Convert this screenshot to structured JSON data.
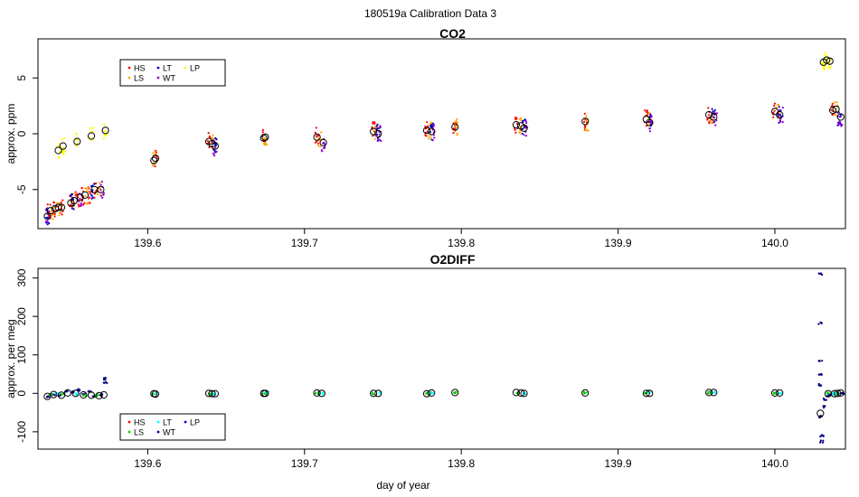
{
  "page": {
    "title": "180519a   Calibration Data 3",
    "xlabel": "day of year"
  },
  "chart_data": [
    {
      "type": "scatter",
      "title": "CO2",
      "xlabel": "",
      "ylabel": "approx. ppm",
      "xlim": [
        139.53,
        140.045
      ],
      "ylim": [
        -8.5,
        8.5
      ],
      "x_ticks": [
        139.6,
        139.7,
        139.8,
        139.9,
        140.0
      ],
      "x_tick_labels": [
        "139.6",
        "139.7",
        "139.8",
        "139.9",
        "140.0"
      ],
      "y_ticks": [
        -5,
        0,
        5
      ],
      "y_tick_labels": [
        "-5",
        "0",
        "5"
      ],
      "grid": false,
      "legend": {
        "placement": "top-left",
        "entries": [
          {
            "label": "HS",
            "color": "#ff0000"
          },
          {
            "label": "LT",
            "color": "#0000cd"
          },
          {
            "label": "LP",
            "color": "#ffff00"
          },
          {
            "label": "LS",
            "color": "#ffa500"
          },
          {
            "label": "WT",
            "color": "#9400d3"
          }
        ]
      },
      "series": [
        {
          "name": "HS",
          "color": "#ff0000",
          "points": [
            [
              139.537,
              -7.0
            ],
            [
              139.541,
              -6.7
            ],
            [
              139.545,
              -6.6
            ],
            [
              139.551,
              -6.2
            ],
            [
              139.555,
              -5.9
            ],
            [
              139.559,
              -5.6
            ],
            [
              139.563,
              -5.5
            ],
            [
              139.567,
              -5.0
            ],
            [
              139.605,
              -2.2
            ],
            [
              139.639,
              -0.6
            ],
            [
              139.674,
              -0.4
            ],
            [
              139.708,
              -0.2
            ],
            [
              139.744,
              0.3
            ],
            [
              139.778,
              0.4
            ],
            [
              139.796,
              0.7
            ],
            [
              139.835,
              0.8
            ],
            [
              139.879,
              1.1
            ],
            [
              139.918,
              1.4
            ],
            [
              139.958,
              1.7
            ],
            [
              140.0,
              2.1
            ],
            [
              140.037,
              2.2
            ]
          ]
        },
        {
          "name": "LS",
          "color": "#ffa500",
          "points": [
            [
              139.539,
              -6.9
            ],
            [
              139.543,
              -6.6
            ],
            [
              139.553,
              -6.0
            ],
            [
              139.561,
              -5.6
            ],
            [
              139.569,
              -5.1
            ],
            [
              139.604,
              -2.3
            ],
            [
              139.641,
              -0.8
            ],
            [
              139.675,
              -0.3
            ],
            [
              139.71,
              -0.5
            ],
            [
              139.746,
              0.2
            ],
            [
              139.78,
              0.3
            ],
            [
              139.797,
              0.6
            ],
            [
              139.838,
              0.7
            ],
            [
              139.88,
              1.0
            ],
            [
              139.92,
              1.2
            ],
            [
              139.96,
              1.6
            ],
            [
              140.002,
              2.0
            ],
            [
              140.039,
              2.1
            ]
          ]
        },
        {
          "name": "LT",
          "color": "#0000cd",
          "points": [
            [
              139.536,
              -7.5
            ],
            [
              139.552,
              -6.1
            ],
            [
              139.565,
              -5.2
            ],
            [
              139.643,
              -1.0
            ],
            [
              139.747,
              0.1
            ],
            [
              139.781,
              0.2
            ],
            [
              139.84,
              0.5
            ],
            [
              139.92,
              1.0
            ],
            [
              139.961,
              1.5
            ],
            [
              140.003,
              1.7
            ],
            [
              140.041,
              1.5
            ]
          ]
        },
        {
          "name": "WT",
          "color": "#9400d3",
          "points": [
            [
              139.536,
              -7.4
            ],
            [
              139.557,
              -5.8
            ],
            [
              139.571,
              -5.0
            ],
            [
              139.643,
              -1.2
            ],
            [
              139.712,
              -0.8
            ],
            [
              139.748,
              0.0
            ],
            [
              139.782,
              0.1
            ],
            [
              139.841,
              0.4
            ],
            [
              139.921,
              0.9
            ],
            [
              139.962,
              1.4
            ],
            [
              140.004,
              1.6
            ],
            [
              140.042,
              1.4
            ]
          ]
        },
        {
          "name": "LP",
          "color": "#ffff00",
          "points": [
            [
              139.543,
              -1.5
            ],
            [
              139.546,
              -1.1
            ],
            [
              139.555,
              -0.7
            ],
            [
              139.564,
              -0.2
            ],
            [
              139.573,
              0.3
            ],
            [
              140.031,
              6.4
            ],
            [
              140.033,
              6.6
            ],
            [
              140.035,
              6.5
            ]
          ]
        }
      ],
      "means": [
        [
          139.536,
          -7.4
        ],
        [
          139.538,
          -6.9
        ],
        [
          139.541,
          -6.7
        ],
        [
          139.543,
          -6.6
        ],
        [
          139.545,
          -6.6
        ],
        [
          139.551,
          -6.2
        ],
        [
          139.553,
          -6.0
        ],
        [
          139.557,
          -5.7
        ],
        [
          139.56,
          -5.5
        ],
        [
          139.566,
          -5.0
        ],
        [
          139.57,
          -5.0
        ],
        [
          139.543,
          -1.5
        ],
        [
          139.546,
          -1.1
        ],
        [
          139.555,
          -0.7
        ],
        [
          139.564,
          -0.2
        ],
        [
          139.573,
          0.3
        ],
        [
          139.605,
          -2.2
        ],
        [
          139.604,
          -2.4
        ],
        [
          139.639,
          -0.7
        ],
        [
          139.641,
          -0.9
        ],
        [
          139.643,
          -1.1
        ],
        [
          139.674,
          -0.4
        ],
        [
          139.675,
          -0.3
        ],
        [
          139.708,
          -0.3
        ],
        [
          139.712,
          -0.8
        ],
        [
          139.744,
          0.2
        ],
        [
          139.747,
          0.0
        ],
        [
          139.778,
          0.3
        ],
        [
          139.781,
          0.2
        ],
        [
          139.796,
          0.6
        ],
        [
          139.835,
          0.8
        ],
        [
          139.838,
          0.7
        ],
        [
          139.84,
          0.5
        ],
        [
          139.879,
          1.1
        ],
        [
          139.918,
          1.3
        ],
        [
          139.92,
          1.0
        ],
        [
          139.958,
          1.7
        ],
        [
          139.961,
          1.5
        ],
        [
          140.0,
          2.0
        ],
        [
          140.003,
          1.7
        ],
        [
          140.031,
          6.4
        ],
        [
          140.033,
          6.6
        ],
        [
          140.035,
          6.5
        ],
        [
          140.037,
          2.1
        ],
        [
          140.039,
          2.2
        ],
        [
          140.042,
          1.5
        ]
      ]
    },
    {
      "type": "scatter",
      "title": "O2DIFF",
      "xlabel": "day of year",
      "ylabel": "approx. per meg",
      "xlim": [
        139.53,
        140.045
      ],
      "ylim": [
        -145,
        325
      ],
      "x_ticks": [
        139.6,
        139.7,
        139.8,
        139.9,
        140.0
      ],
      "x_tick_labels": [
        "139.6",
        "139.7",
        "139.8",
        "139.9",
        "140.0"
      ],
      "y_ticks": [
        -100,
        0,
        100,
        200,
        300
      ],
      "y_tick_labels": [
        "-100",
        "0",
        "100",
        "200",
        "300"
      ],
      "grid": false,
      "legend": {
        "placement": "bottom-left",
        "entries": [
          {
            "label": "HS",
            "color": "#ff0000"
          },
          {
            "label": "LT",
            "color": "#00ffff"
          },
          {
            "label": "LP",
            "color": "#0000cd"
          },
          {
            "label": "LS",
            "color": "#00cd00"
          },
          {
            "label": "WT",
            "color": "#000080"
          }
        ]
      },
      "series": [
        {
          "name": "WT",
          "color": "#000080",
          "points": [
            [
              139.536,
              -8
            ],
            [
              139.54,
              -2
            ],
            [
              139.544,
              -5
            ],
            [
              139.548,
              6
            ],
            [
              139.552,
              4
            ],
            [
              139.556,
              9
            ],
            [
              139.559,
              -3
            ],
            [
              139.563,
              6
            ],
            [
              139.566,
              -7
            ],
            [
              139.57,
              -4
            ],
            [
              139.573,
              38
            ],
            [
              139.573,
              29
            ],
            [
              140.029,
              310
            ],
            [
              140.029,
              182
            ],
            [
              140.029,
              85
            ],
            [
              140.029,
              48
            ],
            [
              140.029,
              22
            ],
            [
              140.029,
              -60
            ],
            [
              140.03,
              -110
            ],
            [
              140.03,
              -125
            ],
            [
              140.031,
              -35
            ],
            [
              140.032,
              -15
            ],
            [
              140.034,
              -5
            ],
            [
              140.036,
              -3
            ],
            [
              140.04,
              0
            ],
            [
              140.043,
              1
            ]
          ]
        },
        {
          "name": "LS",
          "color": "#00cd00",
          "points": [
            [
              139.538,
              -4
            ],
            [
              139.546,
              -2
            ],
            [
              139.56,
              -6
            ],
            [
              139.567,
              -5
            ],
            [
              139.604,
              -1
            ],
            [
              139.64,
              0
            ],
            [
              139.674,
              0
            ],
            [
              139.708,
              1
            ],
            [
              139.744,
              0
            ],
            [
              139.778,
              -1
            ],
            [
              139.796,
              2
            ],
            [
              139.836,
              2
            ],
            [
              139.879,
              1
            ],
            [
              139.918,
              0
            ],
            [
              139.958,
              2
            ],
            [
              140.0,
              1
            ],
            [
              140.034,
              0
            ],
            [
              140.04,
              0
            ]
          ]
        },
        {
          "name": "LT",
          "color": "#00ffff",
          "points": [
            [
              139.542,
              -1
            ],
            [
              139.555,
              -3
            ],
            [
              139.606,
              -1
            ],
            [
              139.642,
              0
            ],
            [
              139.676,
              1
            ],
            [
              139.711,
              0
            ],
            [
              139.748,
              0
            ],
            [
              139.781,
              1
            ],
            [
              139.84,
              0
            ],
            [
              139.92,
              1
            ],
            [
              139.961,
              2
            ],
            [
              140.003,
              1
            ],
            [
              140.038,
              -1
            ]
          ]
        }
      ],
      "means": [
        [
          139.536,
          -8
        ],
        [
          139.54,
          -3
        ],
        [
          139.545,
          -5
        ],
        [
          139.549,
          1
        ],
        [
          139.554,
          0
        ],
        [
          139.559,
          -4
        ],
        [
          139.564,
          -5
        ],
        [
          139.569,
          -6
        ],
        [
          139.572,
          -4
        ],
        [
          139.604,
          -1
        ],
        [
          139.605,
          -2
        ],
        [
          139.639,
          0
        ],
        [
          139.641,
          -1
        ],
        [
          139.643,
          -1
        ],
        [
          139.674,
          0
        ],
        [
          139.675,
          0
        ],
        [
          139.708,
          1
        ],
        [
          139.711,
          0
        ],
        [
          139.744,
          0
        ],
        [
          139.747,
          0
        ],
        [
          139.778,
          -1
        ],
        [
          139.781,
          1
        ],
        [
          139.796,
          2
        ],
        [
          139.835,
          2
        ],
        [
          139.838,
          1
        ],
        [
          139.84,
          0
        ],
        [
          139.879,
          1
        ],
        [
          139.918,
          0
        ],
        [
          139.92,
          0
        ],
        [
          139.958,
          2
        ],
        [
          139.961,
          2
        ],
        [
          140.0,
          1
        ],
        [
          140.003,
          1
        ],
        [
          140.029,
          -52
        ],
        [
          140.034,
          -1
        ],
        [
          140.038,
          -1
        ],
        [
          140.04,
          0
        ],
        [
          140.042,
          1
        ]
      ]
    }
  ]
}
